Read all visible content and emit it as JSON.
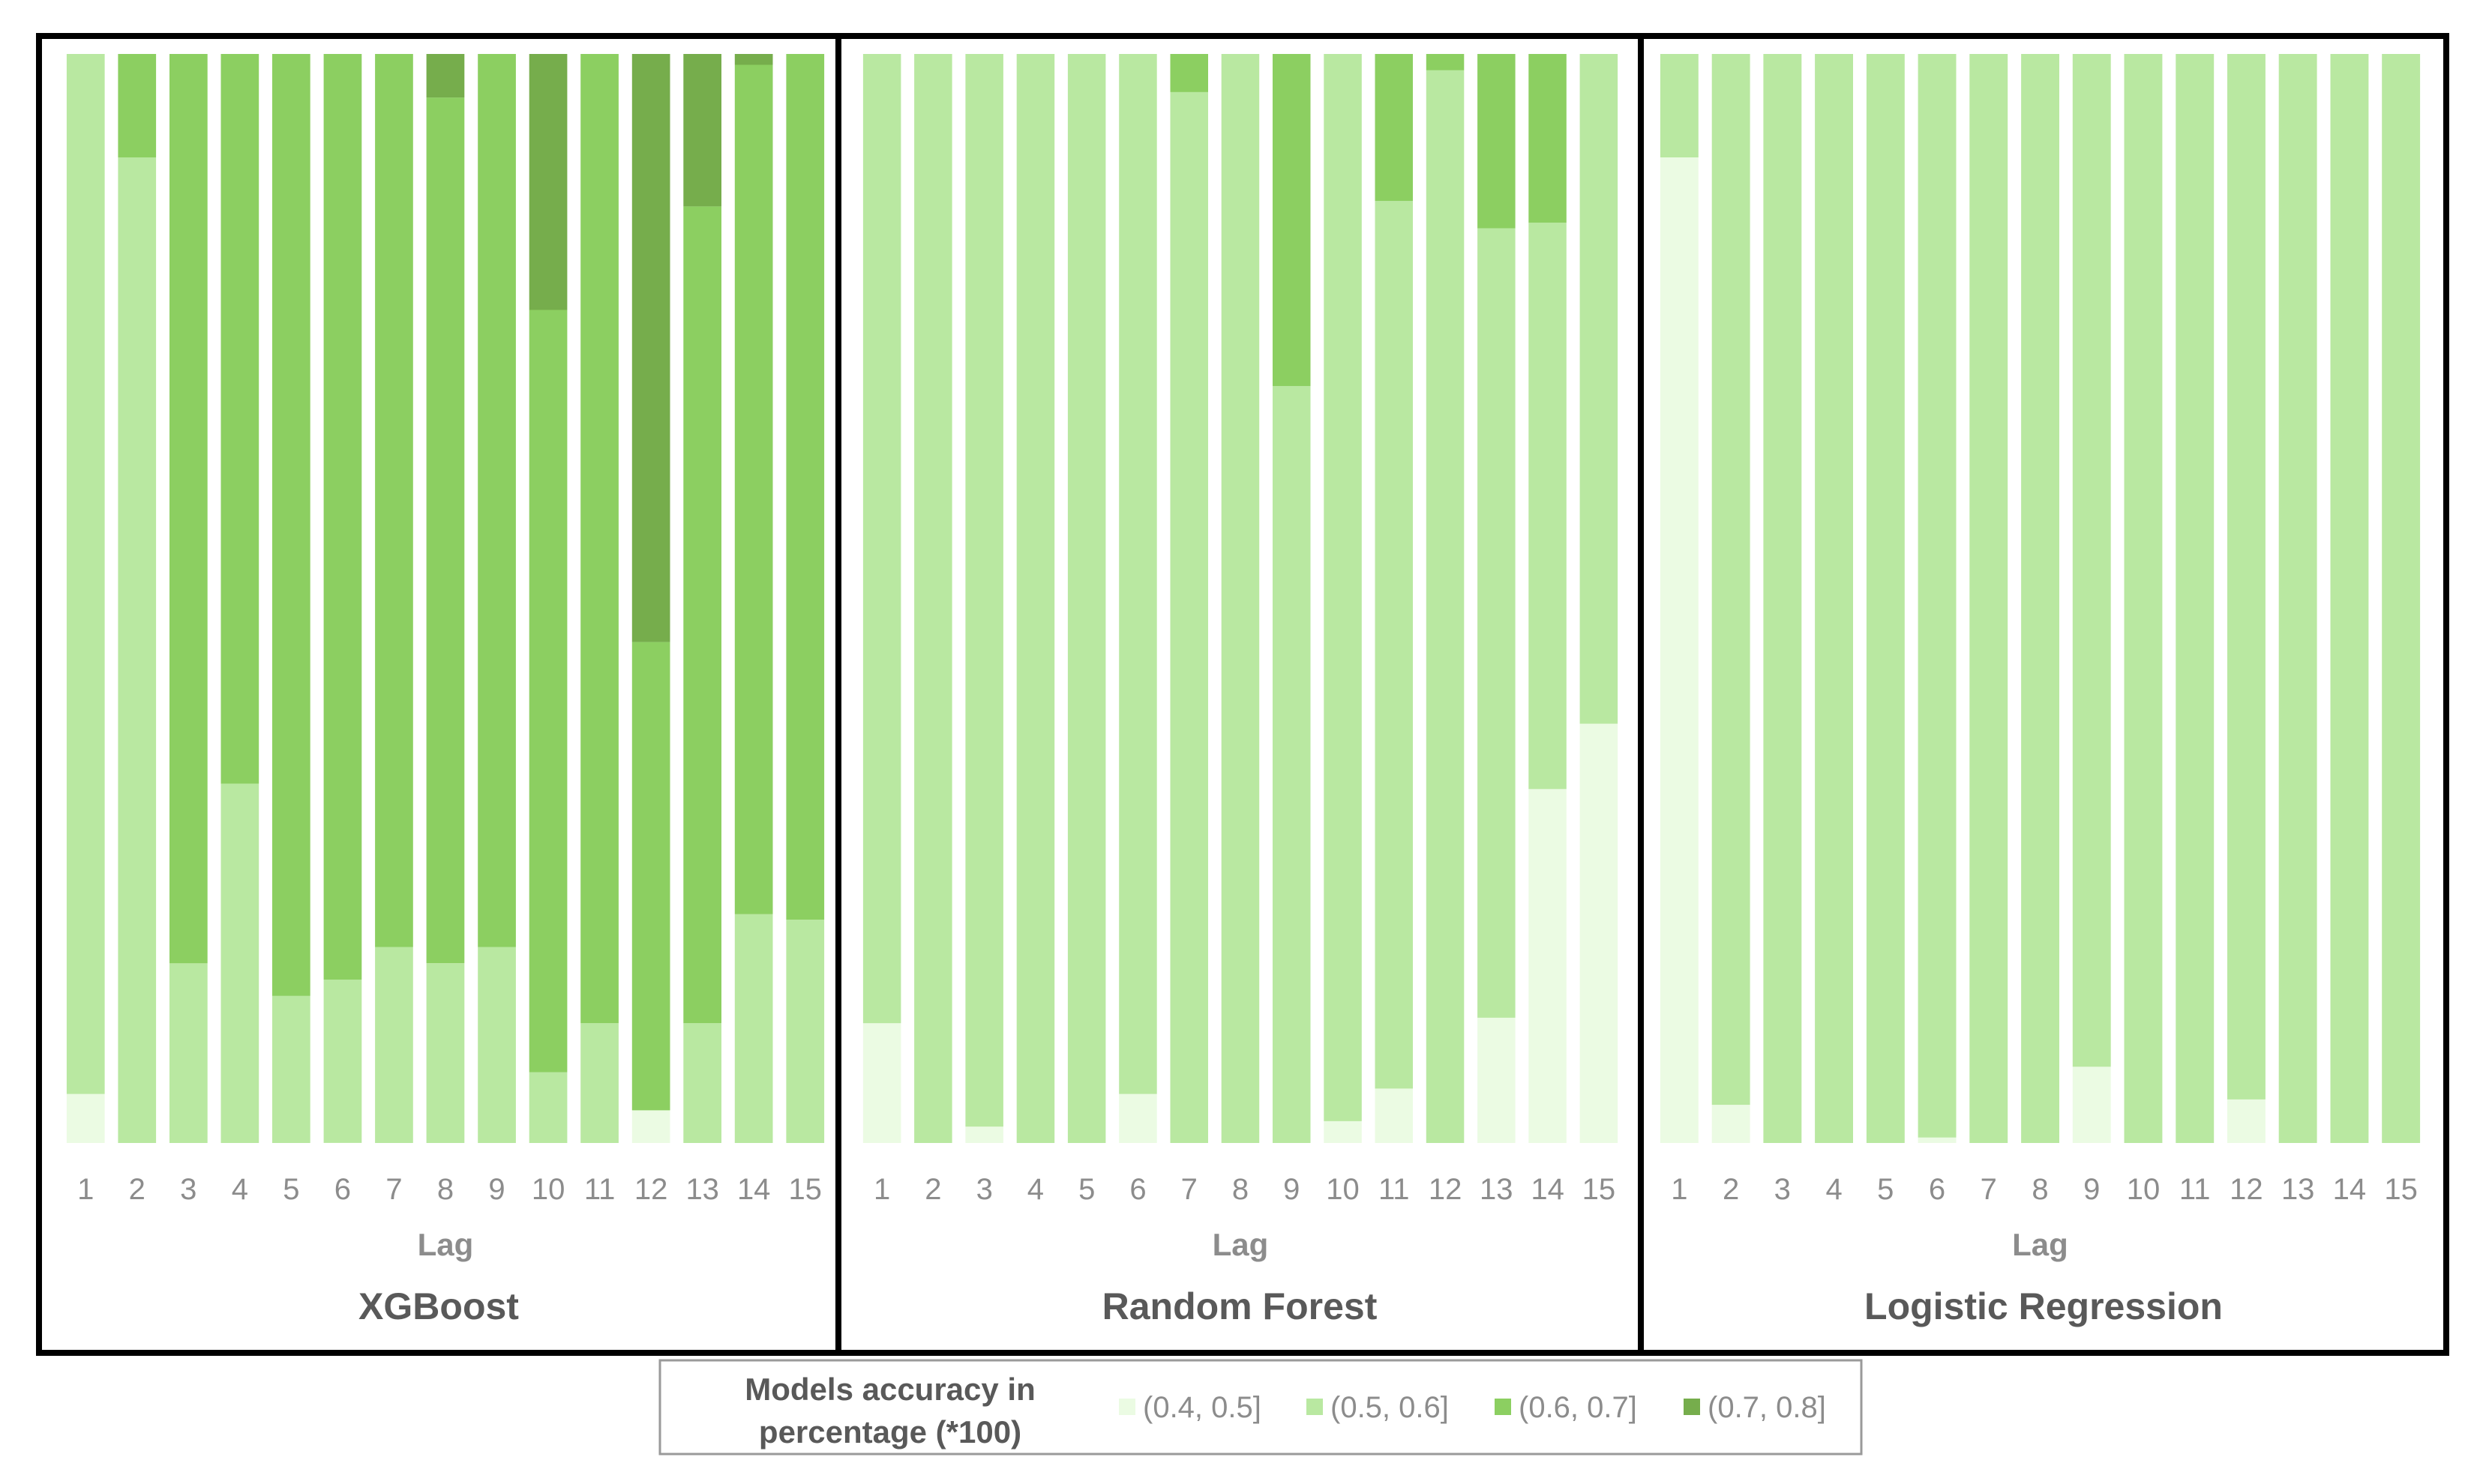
{
  "colors": {
    "band_0.4_0.5": "#ebfbe3",
    "band_0.5_0.6": "#b9e8a1",
    "band_0.6_0.7": "#8ccf61",
    "band_0.7_0.8": "#76ad4c",
    "frame": "#000000",
    "legend_border": "#9a9a9a"
  },
  "legend": {
    "title_line1": "Models accuracy in",
    "title_line2": "percentage (*100)",
    "entries": [
      "(0.4, 0.5]",
      "(0.5, 0.6]",
      "(0.6, 0.7]",
      "(0.7, 0.8]"
    ]
  },
  "chart_data": [
    {
      "type": "bar",
      "stacked": true,
      "title": "XGBoost",
      "xlabel": "Lag",
      "ylabel": "",
      "ylim": [
        0,
        100
      ],
      "categories": [
        "1",
        "2",
        "3",
        "4",
        "5",
        "6",
        "7",
        "8",
        "9",
        "10",
        "11",
        "12",
        "13",
        "14",
        "15"
      ],
      "series": [
        {
          "name": "(0.4, 0.5]",
          "values": [
            4.5,
            0,
            0,
            0,
            0,
            0,
            0,
            0,
            0,
            0,
            0,
            3,
            0,
            0,
            0
          ]
        },
        {
          "name": "(0.5, 0.6]",
          "values": [
            95.5,
            90.5,
            16.5,
            33,
            13.5,
            15,
            18,
            16.5,
            18,
            6.5,
            11,
            0,
            11,
            21,
            20.5
          ]
        },
        {
          "name": "(0.6, 0.7]",
          "values": [
            0,
            9.5,
            83.5,
            67,
            86.5,
            85,
            82,
            79.5,
            82,
            70,
            89,
            43,
            75,
            78,
            79.5
          ]
        },
        {
          "name": "(0.7, 0.8]",
          "values": [
            0,
            0,
            0,
            0,
            0,
            0,
            0,
            4,
            0,
            23.5,
            0,
            54,
            14,
            1,
            0
          ]
        }
      ]
    },
    {
      "type": "bar",
      "stacked": true,
      "title": "Random Forest",
      "xlabel": "Lag",
      "ylabel": "",
      "ylim": [
        0,
        100
      ],
      "categories": [
        "1",
        "2",
        "3",
        "4",
        "5",
        "6",
        "7",
        "8",
        "9",
        "10",
        "11",
        "12",
        "13",
        "14",
        "15"
      ],
      "series": [
        {
          "name": "(0.4, 0.5]",
          "values": [
            11,
            0,
            1.5,
            0,
            0,
            4.5,
            0,
            0,
            0,
            2,
            5,
            0,
            11.5,
            32.5,
            38.5
          ]
        },
        {
          "name": "(0.5, 0.6]",
          "values": [
            89,
            100,
            98.5,
            100,
            100,
            95.5,
            96.5,
            100,
            69.5,
            98,
            81.5,
            98.5,
            72.5,
            52,
            61.5
          ]
        },
        {
          "name": "(0.6, 0.7]",
          "values": [
            0,
            0,
            0,
            0,
            0,
            0,
            3.5,
            0,
            30.5,
            0,
            13.5,
            1.5,
            16,
            15.5,
            0
          ]
        },
        {
          "name": "(0.7, 0.8]",
          "values": [
            0,
            0,
            0,
            0,
            0,
            0,
            0,
            0,
            0,
            0,
            0,
            0,
            0,
            0,
            0
          ]
        }
      ]
    },
    {
      "type": "bar",
      "stacked": true,
      "title": "Logistic Regression",
      "xlabel": "Lag",
      "ylabel": "",
      "ylim": [
        0,
        100
      ],
      "categories": [
        "1",
        "2",
        "3",
        "4",
        "5",
        "6",
        "7",
        "8",
        "9",
        "10",
        "11",
        "12",
        "13",
        "14",
        "15"
      ],
      "series": [
        {
          "name": "(0.4, 0.5]",
          "values": [
            90.5,
            3.5,
            0,
            0,
            0,
            0.5,
            0,
            0,
            7,
            0,
            0,
            4,
            0,
            0,
            0
          ]
        },
        {
          "name": "(0.5, 0.6]",
          "values": [
            9.5,
            96.5,
            100,
            100,
            100,
            99.5,
            100,
            100,
            93,
            100,
            100,
            96,
            100,
            100,
            100
          ]
        },
        {
          "name": "(0.6, 0.7]",
          "values": [
            0,
            0,
            0,
            0,
            0,
            0,
            0,
            0,
            0,
            0,
            0,
            0,
            0,
            0,
            0
          ]
        },
        {
          "name": "(0.7, 0.8]",
          "values": [
            0,
            0,
            0,
            0,
            0,
            0,
            0,
            0,
            0,
            0,
            0,
            0,
            0,
            0,
            0
          ]
        }
      ]
    }
  ]
}
